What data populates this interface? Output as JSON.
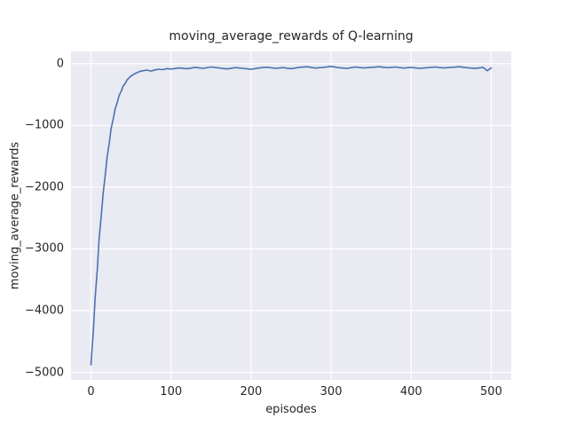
{
  "chart_data": {
    "type": "line",
    "title": "moving_average_rewards of Q-learning",
    "xlabel": "episodes",
    "ylabel": "moving_average_rewards",
    "x_ticks": [
      0,
      100,
      200,
      300,
      400,
      500
    ],
    "y_ticks": [
      0,
      -1000,
      -2000,
      -3000,
      -4000,
      -5000
    ],
    "xlim": [
      -25,
      525
    ],
    "ylim": [
      -5122,
      197
    ],
    "grid": true,
    "legend_position": "none",
    "plot_background": "#eaeaf2",
    "gridline_color": "#ffffff",
    "line_color": "#4c72b0",
    "series": [
      {
        "name": "moving_average_rewards",
        "points": [
          [
            0,
            -4880
          ],
          [
            3,
            -4300
          ],
          [
            5,
            -3820
          ],
          [
            8,
            -3300
          ],
          [
            10,
            -2850
          ],
          [
            13,
            -2430
          ],
          [
            15,
            -2120
          ],
          [
            18,
            -1780
          ],
          [
            20,
            -1520
          ],
          [
            23,
            -1270
          ],
          [
            25,
            -1060
          ],
          [
            28,
            -880
          ],
          [
            30,
            -740
          ],
          [
            33,
            -620
          ],
          [
            35,
            -520
          ],
          [
            38,
            -440
          ],
          [
            40,
            -370
          ],
          [
            43,
            -315
          ],
          [
            45,
            -265
          ],
          [
            48,
            -225
          ],
          [
            50,
            -200
          ],
          [
            53,
            -178
          ],
          [
            55,
            -160
          ],
          [
            58,
            -145
          ],
          [
            60,
            -130
          ],
          [
            65,
            -115
          ],
          [
            70,
            -105
          ],
          [
            75,
            -120
          ],
          [
            80,
            -100
          ],
          [
            85,
            -90
          ],
          [
            90,
            -98
          ],
          [
            95,
            -80
          ],
          [
            100,
            -88
          ],
          [
            110,
            -70
          ],
          [
            120,
            -82
          ],
          [
            130,
            -60
          ],
          [
            140,
            -76
          ],
          [
            150,
            -55
          ],
          [
            160,
            -70
          ],
          [
            170,
            -86
          ],
          [
            180,
            -64
          ],
          [
            190,
            -76
          ],
          [
            200,
            -92
          ],
          [
            210,
            -70
          ],
          [
            220,
            -58
          ],
          [
            230,
            -76
          ],
          [
            240,
            -64
          ],
          [
            250,
            -82
          ],
          [
            260,
            -60
          ],
          [
            270,
            -50
          ],
          [
            280,
            -72
          ],
          [
            290,
            -60
          ],
          [
            300,
            -45
          ],
          [
            310,
            -66
          ],
          [
            320,
            -78
          ],
          [
            330,
            -55
          ],
          [
            340,
            -70
          ],
          [
            350,
            -60
          ],
          [
            360,
            -50
          ],
          [
            370,
            -66
          ],
          [
            380,
            -55
          ],
          [
            390,
            -72
          ],
          [
            400,
            -60
          ],
          [
            410,
            -76
          ],
          [
            420,
            -66
          ],
          [
            430,
            -55
          ],
          [
            440,
            -70
          ],
          [
            450,
            -60
          ],
          [
            460,
            -50
          ],
          [
            470,
            -66
          ],
          [
            480,
            -78
          ],
          [
            490,
            -60
          ],
          [
            495,
            -115
          ],
          [
            500,
            -70
          ]
        ]
      }
    ]
  }
}
